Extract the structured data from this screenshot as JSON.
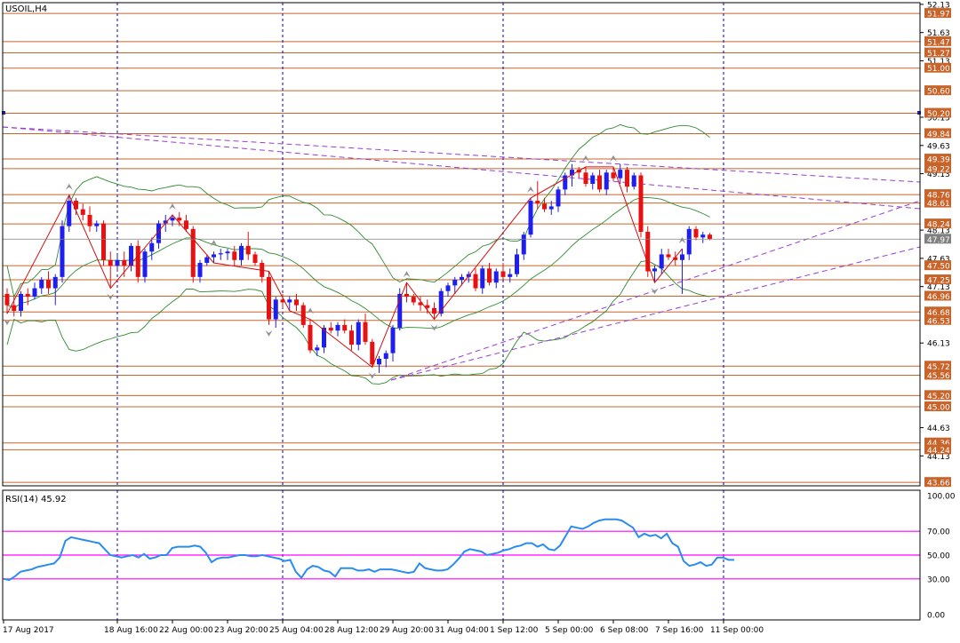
{
  "symbol_label": "USOIL,H4",
  "rsi_label": "RSI(14) 45.92",
  "colors": {
    "background": "#ffffff",
    "frame": "#000000",
    "bull": "#1e1ef0",
    "bear": "#e81010",
    "level_line": "#c8642a",
    "level_box": "#c8642a",
    "current_box": "#808080",
    "bollinger": "#2e8b2e",
    "zigzag": "#d01010",
    "trendline": "#9a3dd0",
    "vline": "#0000c8",
    "rsi_line": "#2a8cf0",
    "rsi_levels": "#ff00ff",
    "fractal": "#909090"
  },
  "chart_data": [
    {
      "type": "candlestick",
      "title": "USOIL,H4",
      "y_range": [
        43.6,
        52.16
      ],
      "price_axis_labels": [
        "52.13",
        "51.63",
        "51.13",
        "50.13",
        "49.63",
        "49.13",
        "48.13",
        "47.63",
        "47.13",
        "46.13",
        "44.63",
        "44.13"
      ],
      "x_tick_labels": [
        "17 Aug 2017",
        "18 Aug 16:00",
        "22 Aug 00:00",
        "23 Aug 20:00",
        "25 Aug 04:00",
        "28 Aug 12:00",
        "29 Aug 20:00",
        "31 Aug 04:00",
        "1 Sep 12:00",
        "5 Sep 00:00",
        "6 Sep 08:00",
        "7 Sep 16:00",
        "11 Sep 00:00"
      ],
      "day_separators": [
        "18 Aug 16:00",
        "25 Aug 04:00",
        "1 Sep 12:00",
        "11 Sep 00:00"
      ],
      "horizontal_levels": [
        "51.97",
        "51.47",
        "51.27",
        "51.00",
        "50.60",
        "50.20",
        "49.84",
        "49.39",
        "49.22",
        "48.76",
        "48.61",
        "48.24",
        "47.50",
        "47.25",
        "46.96",
        "46.68",
        "46.53",
        "45.72",
        "45.56",
        "45.20",
        "45.00",
        "44.36",
        "44.24",
        "43.66"
      ],
      "current_price": "47.97",
      "ohlc": [
        [
          47.0,
          47.1,
          46.65,
          46.8
        ],
        [
          46.8,
          46.95,
          46.6,
          46.7
        ],
        [
          46.7,
          47.05,
          46.6,
          47.0
        ],
        [
          47.0,
          47.1,
          46.8,
          46.95
        ],
        [
          46.95,
          47.2,
          46.9,
          47.1
        ],
        [
          47.1,
          47.3,
          47.0,
          47.25
        ],
        [
          47.25,
          47.4,
          47.0,
          47.1
        ],
        [
          47.1,
          47.35,
          46.8,
          47.3
        ],
        [
          47.3,
          48.3,
          47.2,
          48.2
        ],
        [
          48.2,
          48.75,
          48.1,
          48.65
        ],
        [
          48.65,
          48.7,
          48.4,
          48.5
        ],
        [
          48.5,
          48.6,
          48.3,
          48.4
        ],
        [
          48.4,
          48.55,
          48.1,
          48.2
        ],
        [
          48.2,
          48.3,
          48.1,
          48.25
        ],
        [
          48.25,
          48.3,
          47.5,
          47.6
        ],
        [
          47.6,
          47.75,
          47.1,
          47.5
        ],
        [
          47.5,
          47.7,
          47.4,
          47.6
        ],
        [
          47.6,
          47.75,
          47.3,
          47.5
        ],
        [
          47.5,
          47.9,
          47.4,
          47.85
        ],
        [
          47.85,
          47.95,
          47.2,
          47.3
        ],
        [
          47.3,
          47.8,
          47.2,
          47.75
        ],
        [
          47.75,
          48.0,
          47.6,
          47.9
        ],
        [
          47.9,
          48.3,
          47.8,
          48.25
        ],
        [
          48.25,
          48.4,
          48.1,
          48.3
        ],
        [
          48.3,
          48.4,
          48.2,
          48.35
        ],
        [
          48.35,
          48.45,
          48.2,
          48.3
        ],
        [
          48.3,
          48.4,
          48.1,
          48.15
        ],
        [
          48.15,
          48.2,
          47.2,
          47.3
        ],
        [
          47.3,
          47.6,
          47.2,
          47.55
        ],
        [
          47.55,
          47.7,
          47.5,
          47.65
        ],
        [
          47.65,
          47.75,
          47.55,
          47.7
        ],
        [
          47.7,
          47.8,
          47.6,
          47.72
        ],
        [
          47.72,
          47.8,
          47.6,
          47.75
        ],
        [
          47.75,
          47.85,
          47.5,
          47.6
        ],
        [
          47.6,
          47.9,
          47.5,
          47.85
        ],
        [
          47.85,
          48.1,
          47.6,
          47.7
        ],
        [
          47.7,
          47.75,
          47.5,
          47.55
        ],
        [
          47.55,
          47.6,
          47.2,
          47.3
        ],
        [
          47.3,
          47.4,
          46.45,
          46.55
        ],
        [
          46.55,
          46.95,
          46.4,
          46.9
        ],
        [
          46.9,
          47.0,
          46.75,
          46.85
        ],
        [
          46.85,
          46.95,
          46.7,
          46.9
        ],
        [
          46.9,
          47.0,
          46.7,
          46.8
        ],
        [
          46.8,
          46.85,
          46.4,
          46.45
        ],
        [
          46.45,
          46.55,
          45.95,
          46.0
        ],
        [
          46.0,
          46.1,
          45.9,
          46.05
        ],
        [
          46.05,
          46.45,
          45.95,
          46.4
        ],
        [
          46.4,
          46.5,
          46.3,
          46.35
        ],
        [
          46.35,
          46.5,
          46.25,
          46.45
        ],
        [
          46.45,
          46.55,
          46.3,
          46.35
        ],
        [
          46.35,
          46.45,
          46.0,
          46.1
        ],
        [
          46.1,
          46.55,
          46.0,
          46.5
        ],
        [
          46.5,
          46.65,
          46.1,
          46.15
        ],
        [
          46.15,
          46.2,
          45.7,
          45.75
        ],
        [
          45.75,
          45.9,
          45.6,
          45.85
        ],
        [
          45.85,
          46.0,
          45.7,
          45.95
        ],
        [
          45.95,
          46.45,
          45.8,
          46.4
        ],
        [
          46.4,
          47.1,
          46.35,
          47.0
        ],
        [
          47.0,
          47.2,
          46.85,
          46.95
        ],
        [
          46.95,
          47.0,
          46.8,
          46.85
        ],
        [
          46.85,
          46.95,
          46.7,
          46.8
        ],
        [
          46.8,
          46.9,
          46.65,
          46.75
        ],
        [
          46.75,
          46.85,
          46.55,
          46.65
        ],
        [
          46.65,
          47.1,
          46.6,
          47.05
        ],
        [
          47.05,
          47.2,
          46.95,
          47.15
        ],
        [
          47.15,
          47.3,
          47.0,
          47.25
        ],
        [
          47.25,
          47.35,
          47.15,
          47.3
        ],
        [
          47.3,
          47.4,
          47.2,
          47.35
        ],
        [
          47.35,
          47.45,
          47.05,
          47.1
        ],
        [
          47.1,
          47.5,
          47.0,
          47.45
        ],
        [
          47.45,
          47.55,
          47.15,
          47.2
        ],
        [
          47.2,
          47.45,
          47.1,
          47.4
        ],
        [
          47.4,
          47.55,
          47.25,
          47.3
        ],
        [
          47.3,
          47.45,
          47.2,
          47.35
        ],
        [
          47.35,
          47.8,
          47.3,
          47.7
        ],
        [
          47.7,
          48.1,
          47.6,
          48.05
        ],
        [
          48.05,
          48.7,
          48.0,
          48.65
        ],
        [
          48.65,
          49.0,
          48.5,
          48.6
        ],
        [
          48.6,
          48.7,
          48.45,
          48.5
        ],
        [
          48.5,
          48.65,
          48.4,
          48.55
        ],
        [
          48.55,
          48.9,
          48.45,
          48.85
        ],
        [
          48.85,
          49.15,
          48.75,
          49.1
        ],
        [
          49.1,
          49.3,
          48.9,
          49.2
        ],
        [
          49.2,
          49.25,
          49.05,
          49.15
        ],
        [
          49.15,
          49.25,
          48.9,
          48.95
        ],
        [
          48.95,
          49.15,
          48.85,
          49.1
        ],
        [
          49.1,
          49.2,
          48.8,
          48.85
        ],
        [
          48.85,
          49.2,
          48.75,
          49.15
        ],
        [
          49.15,
          49.25,
          49.0,
          49.05
        ],
        [
          49.05,
          49.3,
          48.95,
          49.2
        ],
        [
          49.2,
          49.25,
          48.8,
          48.9
        ],
        [
          48.9,
          49.15,
          48.85,
          49.1
        ],
        [
          49.1,
          49.15,
          48.0,
          48.1
        ],
        [
          48.1,
          48.2,
          47.3,
          47.4
        ],
        [
          47.4,
          47.5,
          47.2,
          47.45
        ],
        [
          47.45,
          47.8,
          47.35,
          47.7
        ],
        [
          47.7,
          47.8,
          47.6,
          47.65
        ],
        [
          47.65,
          47.75,
          47.5,
          47.6
        ],
        [
          47.6,
          47.8,
          47.0,
          47.7
        ],
        [
          47.7,
          48.2,
          47.6,
          48.15
        ],
        [
          48.15,
          48.2,
          47.95,
          48.0
        ],
        [
          48.0,
          48.1,
          47.9,
          48.05
        ],
        [
          48.05,
          48.08,
          47.95,
          47.97
        ]
      ]
    },
    {
      "type": "line",
      "title": "RSI(14) 45.92",
      "y_range": [
        0,
        100
      ],
      "axis_labels": [
        "100.00",
        "70.00",
        "50.00",
        "30.00",
        "0.00"
      ],
      "levels": [
        70,
        50,
        30
      ],
      "values": [
        30,
        29,
        32,
        36,
        37,
        38,
        40,
        41,
        42,
        43,
        48,
        62,
        65,
        64,
        63,
        62,
        61,
        60,
        55,
        50,
        49,
        48,
        49,
        50,
        48,
        51,
        47,
        48,
        50,
        50,
        56,
        57,
        57,
        57,
        58,
        57,
        52,
        44,
        47,
        48,
        48,
        49,
        50,
        50,
        49,
        49,
        50,
        49,
        48,
        47,
        45,
        46,
        36,
        31,
        38,
        41,
        40,
        37,
        36,
        32,
        39,
        39,
        39,
        37,
        37,
        38,
        36,
        38,
        38,
        38,
        37,
        36,
        35,
        36,
        43,
        39,
        38,
        37,
        37,
        38,
        42,
        47,
        53,
        55,
        54,
        53,
        50,
        51,
        52,
        54,
        55,
        57,
        58,
        60,
        60,
        57,
        59,
        55,
        54,
        58,
        66,
        74,
        73,
        72,
        74,
        77,
        79,
        80,
        80,
        80,
        79,
        76,
        73,
        65,
        68,
        66,
        67,
        64,
        68,
        60,
        57,
        45,
        41,
        42,
        44,
        41,
        42,
        48,
        48,
        46,
        46
      ]
    }
  ]
}
